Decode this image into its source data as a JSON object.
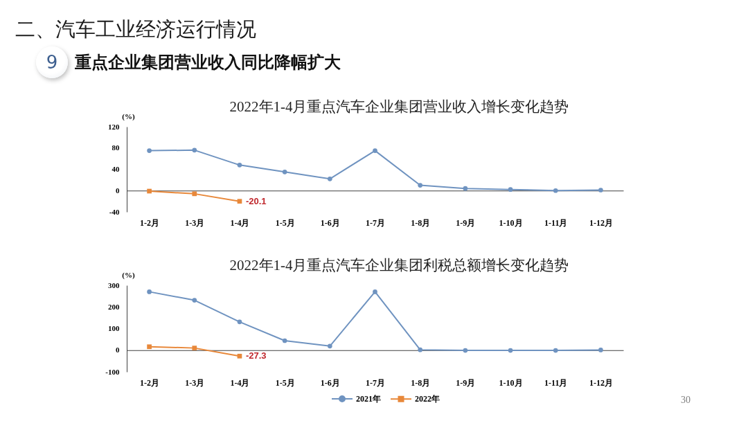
{
  "chart_data": [
    {
      "type": "line",
      "title": "2022年1-4月重点汽车企业集团营业收入增长变化趋势",
      "ylabel": "(%)",
      "categories": [
        "1-2月",
        "1-3月",
        "1-4月",
        "1-5月",
        "1-6月",
        "1-7月",
        "1-8月",
        "1-9月",
        "1-10月",
        "1-11月",
        "1-12月"
      ],
      "series": [
        {
          "color": "#6f93c0",
          "marker": "circle",
          "values": [
            75,
            76,
            48,
            35,
            22,
            75,
            10,
            4,
            2,
            0,
            1
          ]
        },
        {
          "color": "#e8883a",
          "marker": "square",
          "values": [
            -1,
            -6,
            -20.1,
            null,
            null,
            null,
            null,
            null,
            null,
            null,
            null
          ],
          "value_labels": [
            null,
            null,
            "-20.1",
            null,
            null,
            null,
            null,
            null,
            null,
            null,
            null
          ]
        }
      ],
      "ylim": [
        -40,
        120
      ],
      "yticks": [
        -40,
        0,
        40,
        80,
        120
      ],
      "annotations": [
        "二、汽车工业经济运行情况",
        "9",
        "重点企业集团营业收入同比降幅扩大"
      ]
    },
    {
      "type": "line",
      "title": "2022年1-4月重点汽车企业集团利税总额增长变化趋势",
      "ylabel": "(%)",
      "categories": [
        "1-2月",
        "1-3月",
        "1-4月",
        "1-5月",
        "1-6月",
        "1-7月",
        "1-8月",
        "1-9月",
        "1-10月",
        "1-11月",
        "1-12月"
      ],
      "series": [
        {
          "name": "2021年",
          "color": "#6f93c0",
          "marker": "circle",
          "values": [
            270,
            231,
            131,
            44,
            19,
            270,
            2,
            -1,
            -1,
            -1,
            1
          ]
        },
        {
          "name": "2022年",
          "color": "#e8883a",
          "marker": "square",
          "values": [
            16,
            10,
            -27.3,
            null,
            null,
            null,
            null,
            null,
            null,
            null,
            null
          ],
          "value_labels": [
            null,
            null,
            "-27.3",
            null,
            null,
            null,
            null,
            null,
            null,
            null,
            null
          ]
        }
      ],
      "ylim": [
        -100,
        300
      ],
      "yticks": [
        -100,
        0,
        100,
        200,
        300
      ],
      "legend": "bottom",
      "annotations": [
        "30"
      ]
    }
  ]
}
